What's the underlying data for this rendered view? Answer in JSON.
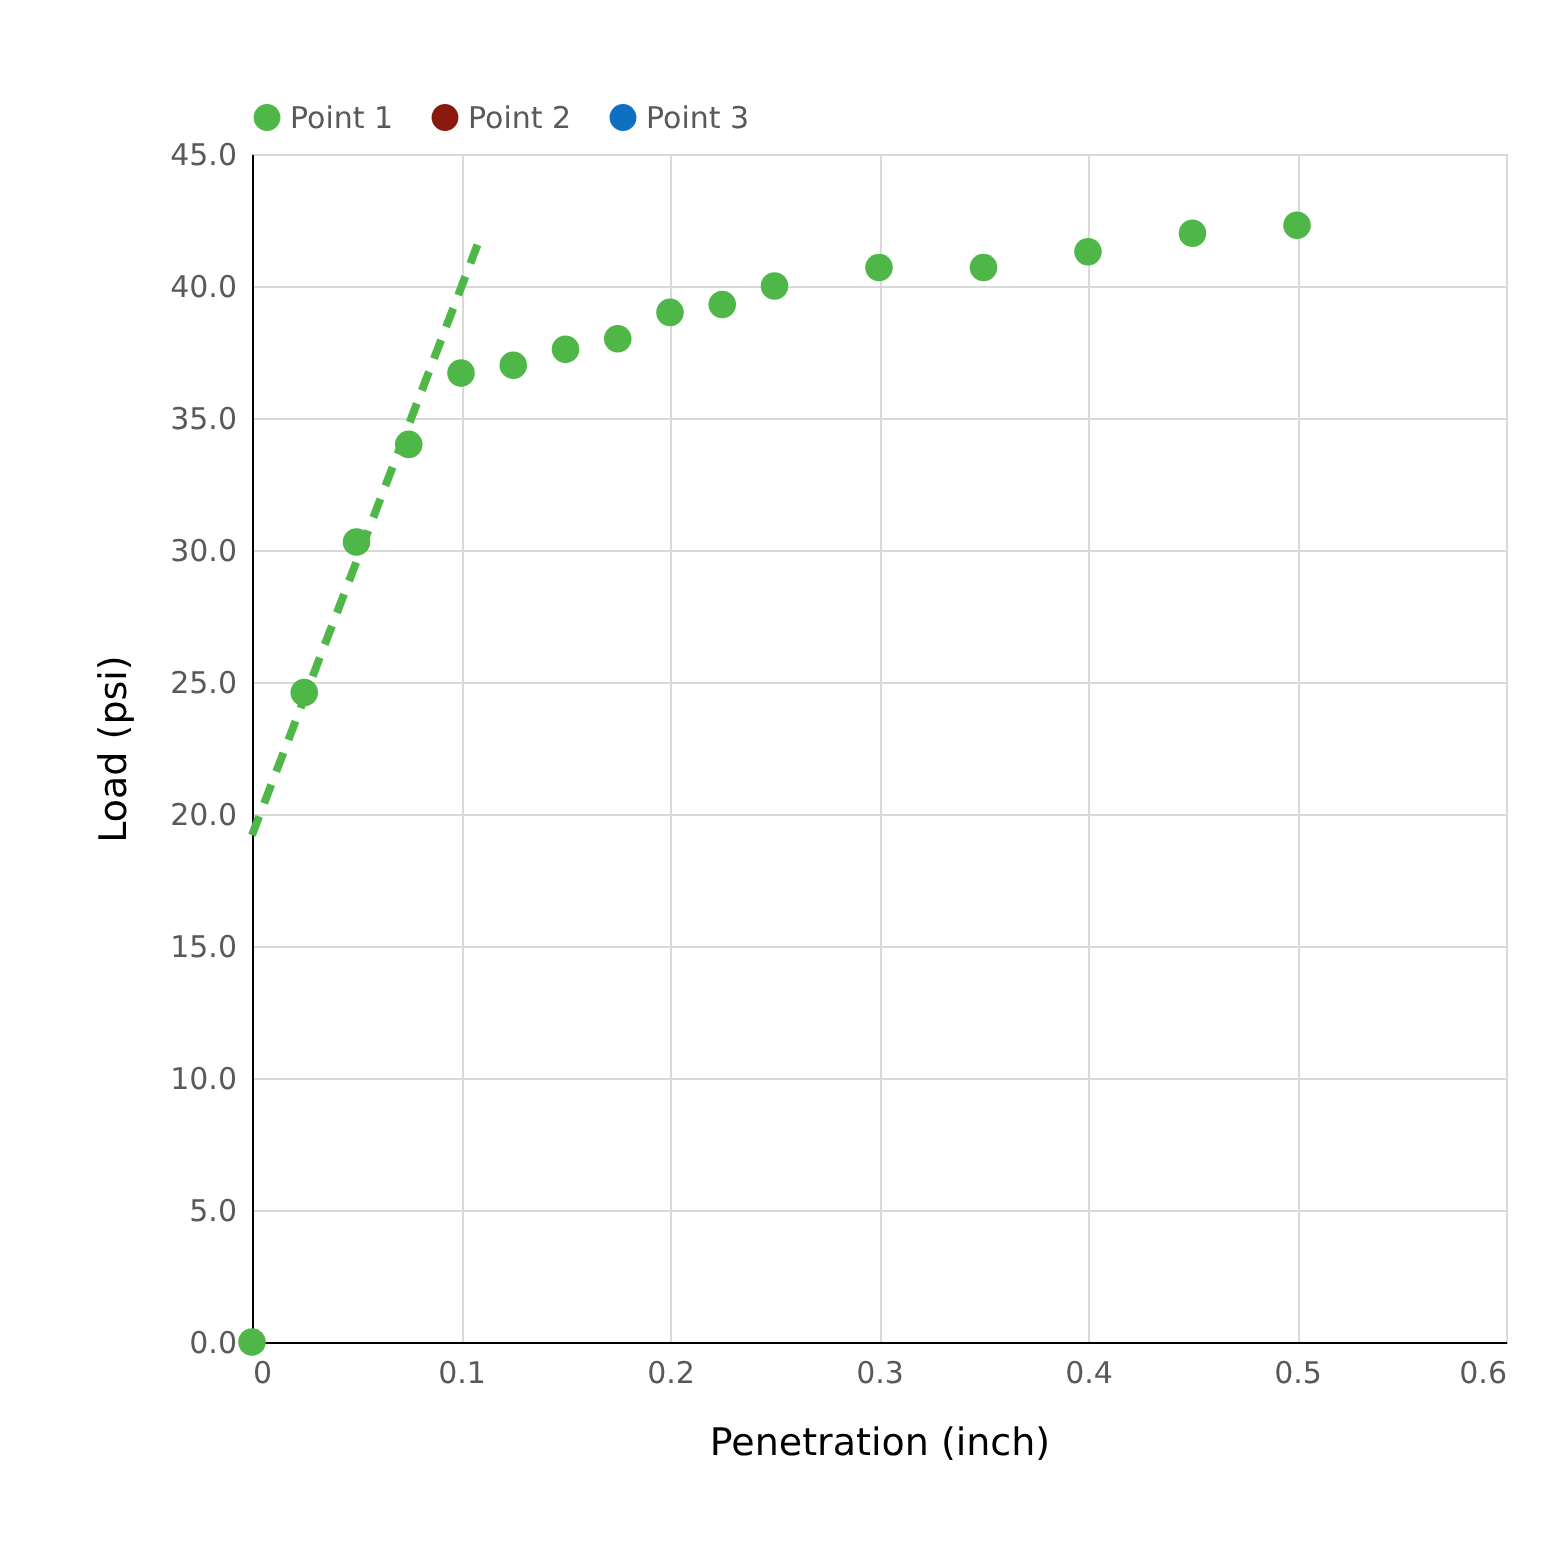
{
  "chart_data": {
    "type": "scatter",
    "xlabel": "Penetration (inch)",
    "ylabel": "Load (psi)",
    "series": [
      {
        "name": "Point 1",
        "color": "#4fb748",
        "x": [
          0,
          0.025,
          0.05,
          0.075,
          0.1,
          0.125,
          0.15,
          0.175,
          0.2,
          0.225,
          0.25,
          0.3,
          0.35,
          0.4,
          0.45,
          0.5
        ],
        "values": [
          0,
          24.6,
          30.3,
          34.0,
          36.7,
          37.0,
          37.6,
          38.0,
          39.0,
          39.3,
          40.0,
          40.7,
          40.7,
          41.3,
          42.0,
          42.3
        ]
      },
      {
        "name": "Point 2",
        "color": "#8b1a0e"
      },
      {
        "name": "Point 3",
        "color": "#0d70c0"
      },
      {
        "type": "line",
        "line_style": "dashed",
        "marker": "none",
        "color": "#4fb748",
        "x": [
          0,
          0.11
        ],
        "values": [
          19.2,
          42.0
        ]
      }
    ],
    "xlim": [
      0,
      0.6
    ],
    "xticks": [
      0,
      0.1,
      0.2,
      0.3,
      0.4,
      0.5,
      0.6
    ],
    "ylim": [
      0,
      45
    ],
    "yticks": [
      {
        "value": 0,
        "label": "0.0"
      },
      {
        "value": 5,
        "label": "5.0"
      },
      {
        "value": 10,
        "label": "10.0"
      },
      {
        "value": 15,
        "label": "15.0"
      },
      {
        "value": 20,
        "label": "20.0"
      },
      {
        "value": 25,
        "label": "25.0"
      },
      {
        "value": 30,
        "label": "30.0"
      },
      {
        "value": 35,
        "label": "35.0"
      },
      {
        "value": 40,
        "label": "40.0"
      },
      {
        "value": 45,
        "label": "45.0"
      }
    ],
    "grid": true,
    "legend": "top",
    "marker": "circle"
  }
}
